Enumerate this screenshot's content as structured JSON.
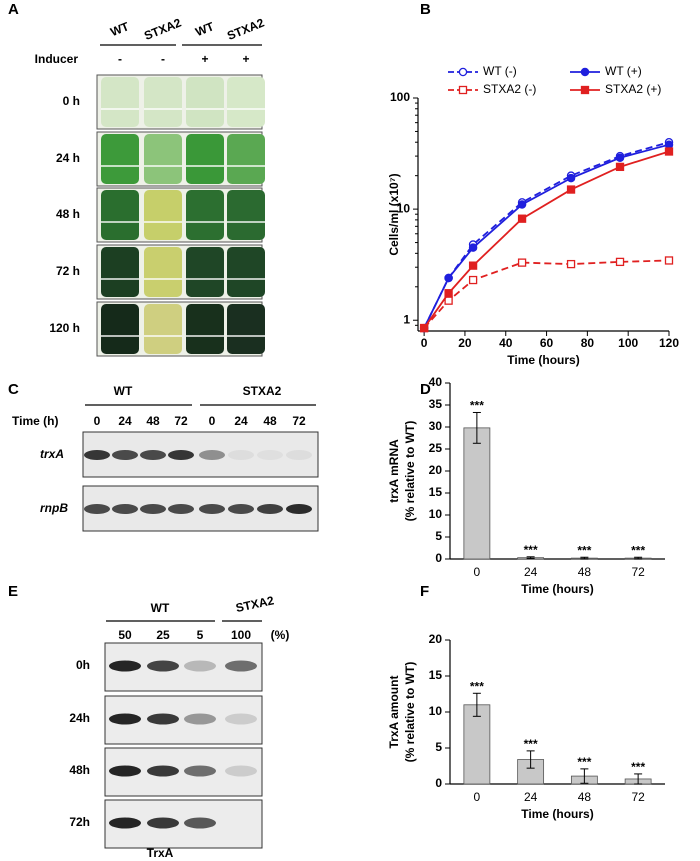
{
  "panel_letters": [
    "A",
    "B",
    "C",
    "D",
    "E",
    "F"
  ],
  "panel_a": {
    "columns": [
      "WT",
      "STXA2",
      "WT",
      "STXA2"
    ],
    "inducer_label": "Inducer",
    "inducer": [
      "-",
      "-",
      "+",
      "+"
    ],
    "rows": [
      "0 h",
      "24 h",
      "48 h",
      "72 h",
      "120 h"
    ]
  },
  "panel_c": {
    "groups": [
      "WT",
      "STXA2"
    ],
    "time_label": "Time (h)",
    "times": [
      "0",
      "24",
      "48",
      "72",
      "0",
      "24",
      "48",
      "72"
    ],
    "rows": [
      "trxA",
      "rnpB"
    ]
  },
  "panel_e": {
    "groups": [
      "WT",
      "STXA2"
    ],
    "percents": [
      "50",
      "25",
      "5",
      "100"
    ],
    "percent_unit": "(%)",
    "rows": [
      "0h",
      "24h",
      "48h",
      "72h"
    ],
    "protein": "TrxA"
  },
  "chart_data": [
    {
      "type": "line",
      "x_label": "Time (hours)",
      "y_label": "Cells/ml (x10⁷)",
      "log_y": true,
      "x": [
        0,
        12,
        24,
        48,
        72,
        96,
        120
      ],
      "xlim": [
        -3,
        120
      ],
      "xticks": [
        0,
        20,
        40,
        60,
        80,
        100,
        120
      ],
      "ylim": [
        0.8,
        100
      ],
      "yticks": [
        1,
        10,
        100
      ],
      "legend": "top",
      "series": [
        {
          "name": "WT (-)",
          "color": "#1f1fdd",
          "marker": "circle",
          "filled": false,
          "dashed": true,
          "values": [
            0.85,
            2.4,
            4.8,
            11.5,
            20,
            30,
            40
          ]
        },
        {
          "name": "STXA2 (-)",
          "color": "#e02020",
          "marker": "square",
          "filled": false,
          "dashed": true,
          "values": [
            0.85,
            1.5,
            2.3,
            3.3,
            3.2,
            3.35,
            3.45
          ]
        },
        {
          "name": "WT (+)",
          "color": "#1f1fdd",
          "marker": "circle",
          "filled": true,
          "dashed": false,
          "values": [
            0.85,
            2.4,
            4.5,
            11,
            19,
            29,
            38
          ]
        },
        {
          "name": "STXA2 (+)",
          "color": "#e02020",
          "marker": "square",
          "filled": true,
          "dashed": false,
          "values": [
            0.85,
            1.75,
            3.1,
            8.2,
            15,
            24,
            33
          ]
        }
      ]
    },
    {
      "type": "bar",
      "x_label": "Time (hours)",
      "y_label": [
        "trxA mRNA",
        "(% relative to WT)"
      ],
      "categories": [
        "0",
        "24",
        "48",
        "72"
      ],
      "values": [
        29.8,
        0.3,
        0.2,
        0.2
      ],
      "errors": [
        3.5,
        0.2,
        0.2,
        0.2
      ],
      "annotations": [
        "***",
        "***",
        "***",
        "***"
      ],
      "color": "#c8c8c8",
      "ylim": [
        0,
        40
      ],
      "yticks": [
        0,
        5,
        10,
        15,
        20,
        25,
        30,
        35,
        40
      ]
    },
    {
      "type": "bar",
      "x_label": "Time (hours)",
      "y_label": [
        "TrxA amount",
        "(% relative to WT)"
      ],
      "categories": [
        "0",
        "24",
        "48",
        "72"
      ],
      "values": [
        11,
        3.4,
        1.1,
        0.7
      ],
      "errors": [
        1.6,
        1.2,
        1.0,
        0.7
      ],
      "annotations": [
        "***",
        "***",
        "***",
        "***"
      ],
      "color": "#c8c8c8",
      "ylim": [
        0,
        20
      ],
      "yticks": [
        0,
        5,
        10,
        15,
        20
      ]
    }
  ]
}
